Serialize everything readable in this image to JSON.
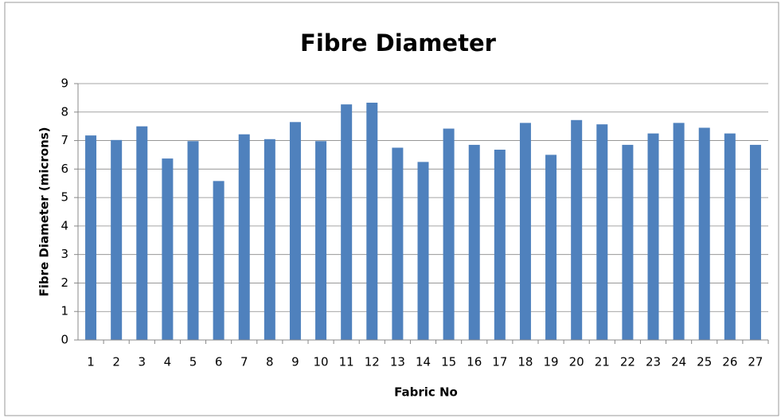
{
  "chart_data": {
    "type": "bar",
    "title": "Fibre Diameter",
    "x_label": "Fabric No",
    "y_label": "Fibre Diameter (microns)",
    "categories": [
      "1",
      "2",
      "3",
      "4",
      "5",
      "6",
      "7",
      "8",
      "9",
      "10",
      "11",
      "12",
      "13",
      "14",
      "15",
      "16",
      "17",
      "18",
      "19",
      "20",
      "21",
      "22",
      "23",
      "24",
      "25",
      "26",
      "27"
    ],
    "values": [
      7.18,
      7.02,
      7.5,
      6.37,
      6.98,
      5.58,
      7.22,
      7.05,
      7.65,
      6.98,
      8.27,
      8.33,
      6.75,
      6.25,
      7.42,
      6.85,
      6.68,
      7.62,
      6.5,
      7.72,
      7.57,
      6.85,
      7.25,
      7.62,
      7.45,
      7.25,
      6.85
    ],
    "color": "#4f81bd",
    "ylim": [
      0,
      9
    ],
    "yticks": [
      0,
      1,
      2,
      3,
      4,
      5,
      6,
      7,
      8,
      9
    ],
    "grid": true
  }
}
